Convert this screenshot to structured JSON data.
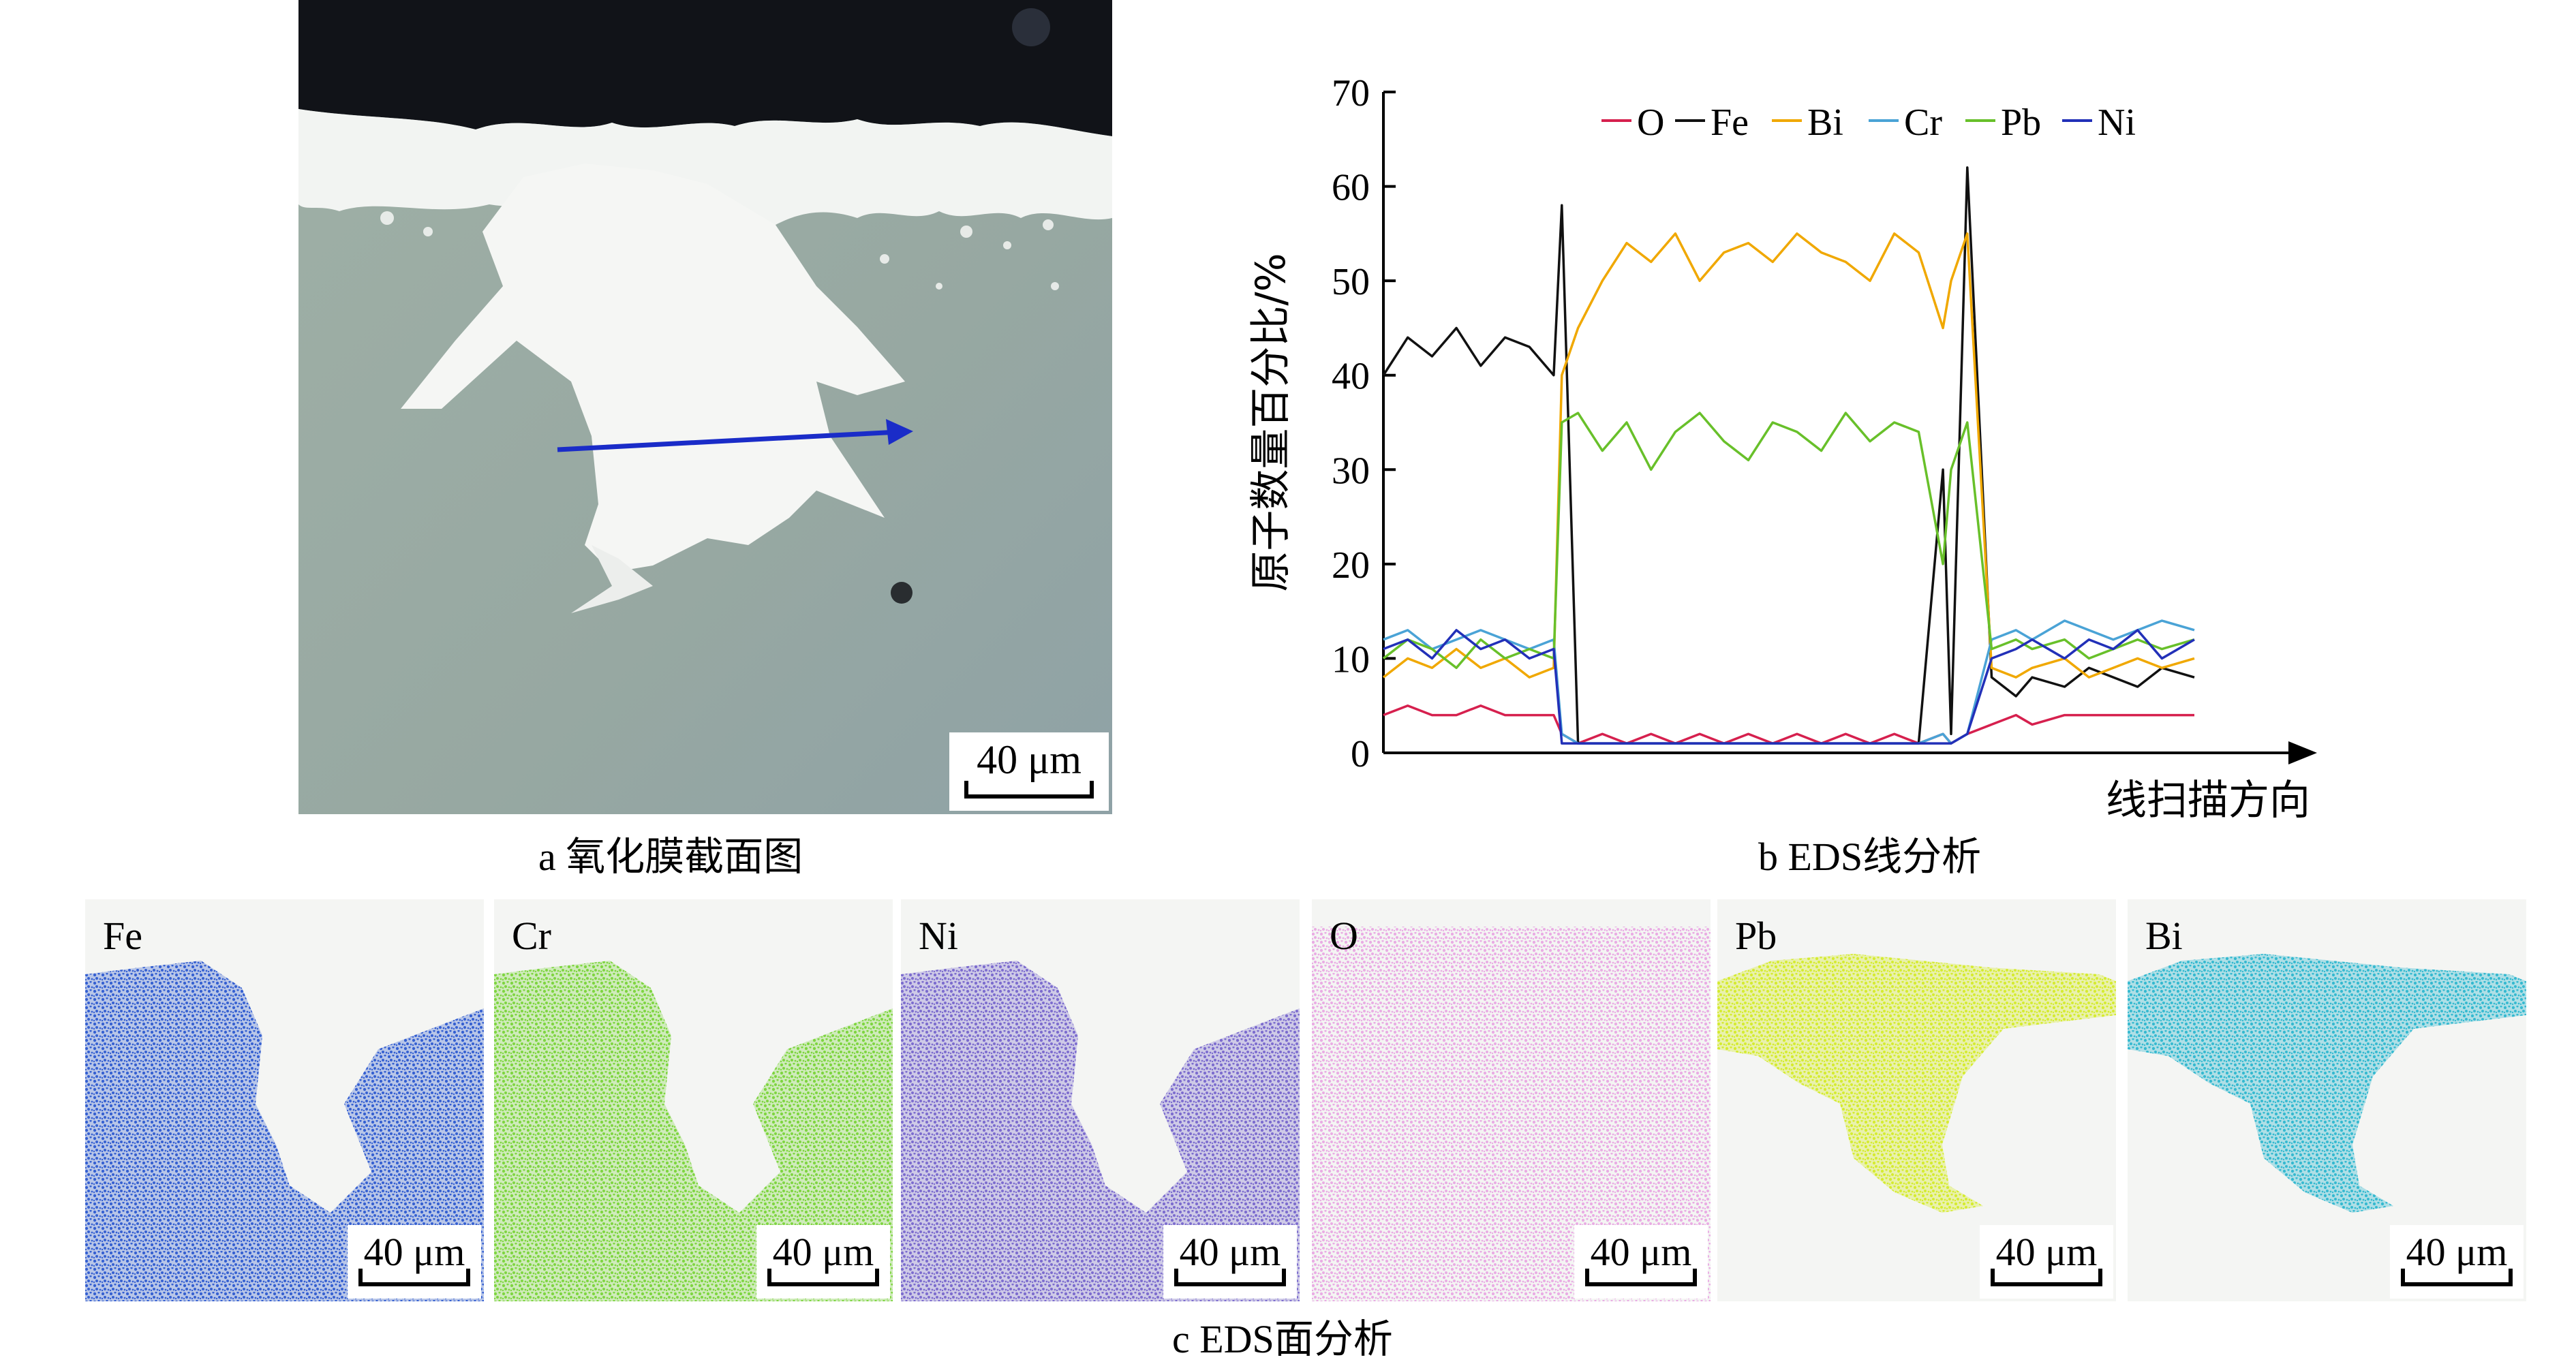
{
  "panel_a": {
    "scale_label": "40 μm",
    "caption": "a  氧化膜截面图"
  },
  "panel_b": {
    "caption": "b  EDS线分析",
    "chart_data": {
      "type": "line",
      "ylabel": "原子数量百分比/%",
      "xlabel": "线扫描方向",
      "ylim": [
        0,
        70
      ],
      "yticks": [
        "0",
        "10",
        "20",
        "30",
        "40",
        "50",
        "60",
        "70"
      ],
      "legend_position": "top",
      "grid": false,
      "x": [
        0,
        3,
        6,
        9,
        12,
        15,
        18,
        21,
        22,
        24,
        27,
        30,
        33,
        36,
        39,
        42,
        45,
        48,
        51,
        54,
        57,
        60,
        63,
        66,
        69,
        70,
        72,
        75,
        78,
        80,
        84,
        87,
        90,
        93,
        96,
        100
      ],
      "series": [
        {
          "name": "O",
          "color": "#d6204e",
          "values": [
            4,
            5,
            4,
            4,
            5,
            4,
            4,
            4,
            2,
            1,
            2,
            1,
            2,
            1,
            2,
            1,
            2,
            1,
            2,
            1,
            2,
            1,
            2,
            1,
            2,
            1,
            2,
            3,
            4,
            3,
            4,
            4,
            4,
            4,
            4,
            4
          ]
        },
        {
          "name": "Fe",
          "color": "#111111",
          "values": [
            40,
            44,
            42,
            45,
            41,
            44,
            43,
            40,
            58,
            1,
            1,
            1,
            1,
            1,
            1,
            1,
            1,
            1,
            1,
            1,
            1,
            1,
            1,
            1,
            30,
            2,
            62,
            8,
            6,
            8,
            7,
            9,
            8,
            7,
            9,
            8
          ]
        },
        {
          "name": "Bi",
          "color": "#f0a800",
          "values": [
            8,
            10,
            9,
            11,
            9,
            10,
            8,
            9,
            40,
            45,
            50,
            54,
            52,
            55,
            50,
            53,
            54,
            52,
            55,
            53,
            52,
            50,
            55,
            53,
            45,
            50,
            55,
            9,
            8,
            9,
            10,
            8,
            9,
            10,
            9,
            10
          ]
        },
        {
          "name": "Cr",
          "color": "#4aa3d6",
          "values": [
            12,
            13,
            11,
            12,
            13,
            12,
            11,
            12,
            2,
            1,
            1,
            1,
            1,
            1,
            1,
            1,
            1,
            1,
            1,
            1,
            1,
            1,
            1,
            1,
            2,
            1,
            2,
            12,
            13,
            12,
            14,
            13,
            12,
            13,
            14,
            13
          ]
        },
        {
          "name": "Pb",
          "color": "#68c02a",
          "values": [
            10,
            12,
            11,
            9,
            12,
            10,
            11,
            10,
            35,
            36,
            32,
            35,
            30,
            34,
            36,
            33,
            31,
            35,
            34,
            32,
            36,
            33,
            35,
            34,
            20,
            30,
            35,
            11,
            12,
            11,
            12,
            10,
            11,
            12,
            11,
            12
          ]
        },
        {
          "name": "Ni",
          "color": "#2230b8",
          "values": [
            11,
            12,
            10,
            13,
            11,
            12,
            10,
            11,
            1,
            1,
            1,
            1,
            1,
            1,
            1,
            1,
            1,
            1,
            1,
            1,
            1,
            1,
            1,
            1,
            1,
            1,
            2,
            10,
            11,
            12,
            10,
            12,
            11,
            13,
            10,
            12
          ]
        }
      ]
    }
  },
  "panel_c": {
    "caption": "c  EDS面分析",
    "scale_label": "40 μm",
    "maps": [
      {
        "element": "Fe",
        "color": "#2f5bd0"
      },
      {
        "element": "Cr",
        "color": "#7ad43a"
      },
      {
        "element": "Ni",
        "color": "#7868cc"
      },
      {
        "element": "O",
        "color": "#e070d8"
      },
      {
        "element": "Pb",
        "color": "#d4ec2a"
      },
      {
        "element": "Bi",
        "color": "#2fb7cf"
      }
    ]
  }
}
